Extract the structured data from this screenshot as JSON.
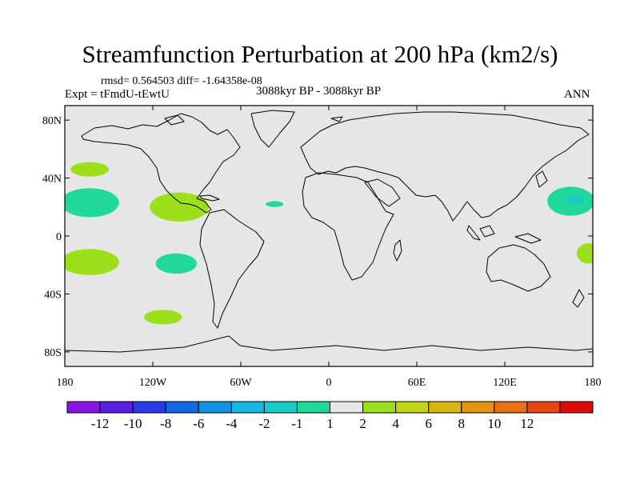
{
  "header": {
    "title": "Streamfunction Perturbation at 200 hPa (km2/s)",
    "stats": "rmsd= 0.564503 diff= -1.64358e-08",
    "experiment": "Expt = tFmdU-tEwtU",
    "period": "3088kyr BP - 3088kyr BP",
    "season": "ANN"
  },
  "chart_data": {
    "type": "heatmap",
    "title": "Streamfunction Perturbation at 200 hPa (km2/s)",
    "projection": "cylindrical equidistant",
    "xlim": [
      -180,
      180
    ],
    "ylim": [
      -90,
      90
    ],
    "x_ticks": [
      {
        "value": -180,
        "label": "180"
      },
      {
        "value": -120,
        "label": "120W"
      },
      {
        "value": -60,
        "label": "60W"
      },
      {
        "value": 0,
        "label": "0"
      },
      {
        "value": 60,
        "label": "60E"
      },
      {
        "value": 120,
        "label": "120E"
      },
      {
        "value": 180,
        "label": "180"
      }
    ],
    "y_ticks": [
      {
        "value": 80,
        "label": "80N"
      },
      {
        "value": 40,
        "label": "40N"
      },
      {
        "value": 0,
        "label": "0"
      },
      {
        "value": -40,
        "label": "40S"
      },
      {
        "value": -80,
        "label": "80S"
      }
    ],
    "background_value_range": "-1 to 1",
    "anomaly_regions": [
      {
        "name": "north-pacific-positive",
        "lon": -163,
        "lat": 46,
        "lon_radius": 13,
        "lat_radius": 5,
        "bin": "1 to 2"
      },
      {
        "name": "central-pacific-negative",
        "lon": -163,
        "lat": 23,
        "lon_radius": 20,
        "lat_radius": 10,
        "bin": "-2 to -1"
      },
      {
        "name": "mexico-positive",
        "lon": -102,
        "lat": 20,
        "lon_radius": 20,
        "lat_radius": 10,
        "bin": "1 to 2"
      },
      {
        "name": "atlantic-negative",
        "lon": -37,
        "lat": 22,
        "lon_radius": 6,
        "lat_radius": 2,
        "bin": "-2 to -1"
      },
      {
        "name": "west-pacific-negative",
        "lon": 165,
        "lat": 24,
        "lon_radius": 16,
        "lat_radius": 10,
        "bin": "-2 to -1"
      },
      {
        "name": "west-pacific-core",
        "lon": 168,
        "lat": 25,
        "lon_radius": 6,
        "lat_radius": 3,
        "bin": "-4 to -2"
      },
      {
        "name": "south-pacific-positive",
        "lon": -163,
        "lat": -18,
        "lon_radius": 20,
        "lat_radius": 9,
        "bin": "1 to 2"
      },
      {
        "name": "east-pacific-negative",
        "lon": -104,
        "lat": -19,
        "lon_radius": 14,
        "lat_radius": 7,
        "bin": "-2 to -1"
      },
      {
        "name": "coral-sea-positive",
        "lon": 177,
        "lat": -12,
        "lon_radius": 8,
        "lat_radius": 7,
        "bin": "1 to 2"
      },
      {
        "name": "southern-ocean-positive",
        "lon": -113,
        "lat": -56,
        "lon_radius": 13,
        "lat_radius": 5,
        "bin": "1 to 2"
      }
    ],
    "colorbar": {
      "bins": [
        {
          "color": "#8a14e6",
          "label": ""
        },
        {
          "color": "#5a1ee0",
          "label": "-12"
        },
        {
          "color": "#2a3ce8",
          "label": "-10"
        },
        {
          "color": "#1468e6",
          "label": "-8"
        },
        {
          "color": "#0f94e6",
          "label": "-6"
        },
        {
          "color": "#17b6e2",
          "label": "-4"
        },
        {
          "color": "#17ccc8",
          "label": "-2"
        },
        {
          "color": "#1fd89a",
          "label": "-1"
        },
        {
          "color": "#e6e6e6",
          "label": "1"
        },
        {
          "color": "#9ce01c",
          "label": "2"
        },
        {
          "color": "#c2d618",
          "label": "4"
        },
        {
          "color": "#d8b60c",
          "label": "6"
        },
        {
          "color": "#e09410",
          "label": "8"
        },
        {
          "color": "#e67014",
          "label": "10"
        },
        {
          "color": "#e64614",
          "label": "12"
        },
        {
          "color": "#e00a0a",
          "label": ""
        }
      ]
    }
  }
}
